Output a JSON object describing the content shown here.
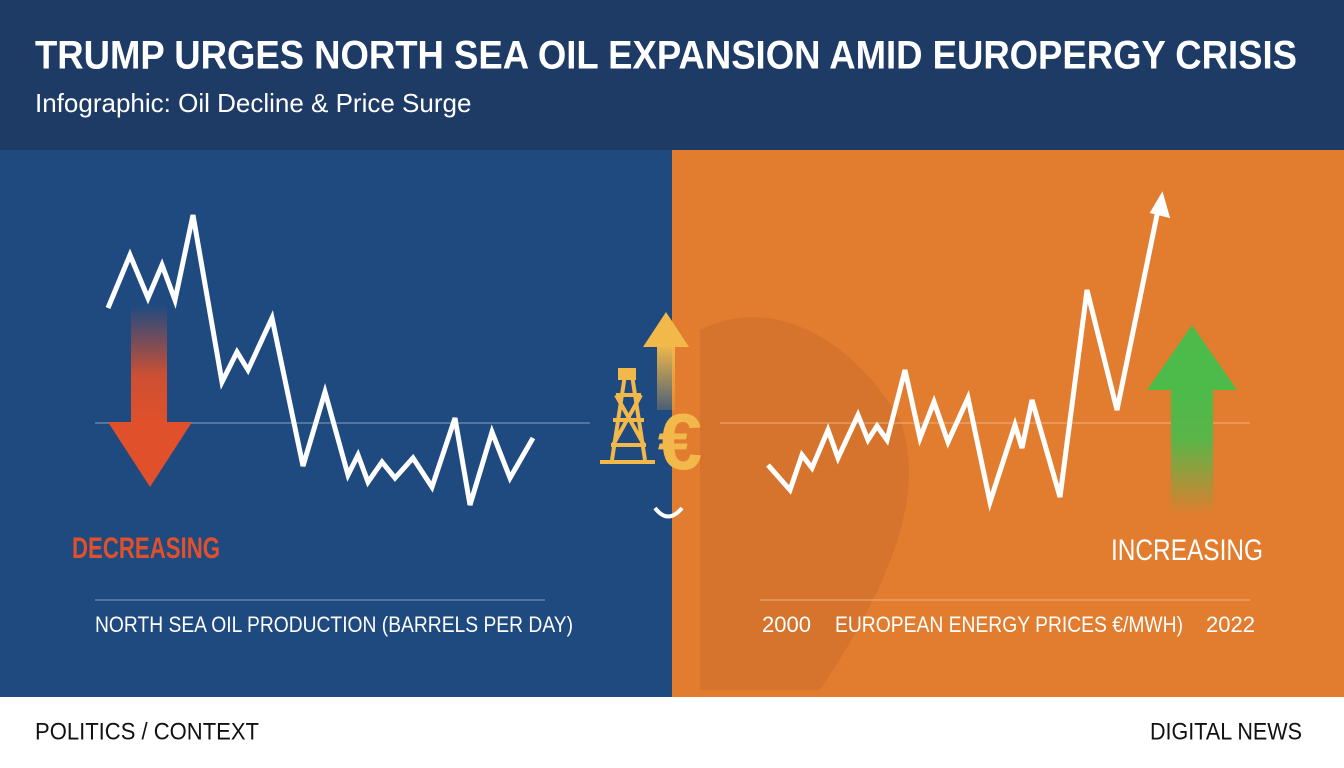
{
  "header": {
    "title": "TRUMP URGES NORTH SEA OIL EXPANSION AMID  EUROPERGY CRISIS",
    "subtitle": "Infographic: Oil Decline & Price Surge"
  },
  "left_panel": {
    "trend": "DECREASING",
    "caption": "NORTH SEA OIL PRODUCTION (BARRELS PER DAY)"
  },
  "center": {
    "symbol": "€"
  },
  "right_panel": {
    "trend": "INCREASING",
    "start": "2000",
    "caption": "EUROPEAN ENERGY PRICES €/MWH)",
    "end": "2022"
  },
  "footer": {
    "left": "POLITICS / CONTEXT",
    "right": "DIGITAL NEWS"
  }
}
